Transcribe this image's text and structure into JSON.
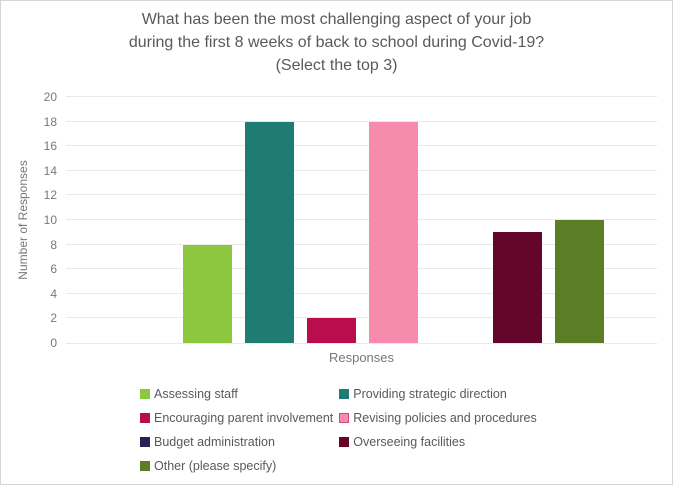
{
  "chart_data": {
    "type": "bar",
    "title": "What has been the most challenging aspect of your job during the first 8 weeks of back to school during Covid-19? (Select the top 3)",
    "title_lines": [
      "What has been the most challenging aspect of your job",
      "during the first 8 weeks of back to school during Covid-19?",
      "(Select the top 3)"
    ],
    "xlabel": "Responses",
    "ylabel": "Number of Responses",
    "ylim": [
      0,
      20
    ],
    "yticks": [
      0,
      2,
      4,
      6,
      8,
      10,
      12,
      14,
      16,
      18,
      20
    ],
    "grid": true,
    "legend_position": "bottom",
    "categories": [
      "Assessing staff",
      "Providing strategic direction",
      "Encouraging parent involvement",
      "Revising policies and procedures",
      "Budget administration",
      "Overseeing facilities",
      "Other (please specify)"
    ],
    "values": [
      8,
      18,
      2,
      18,
      0,
      9,
      10
    ],
    "colors": [
      "#8dc63f",
      "#1e7c73",
      "#b90d4e",
      "#f78bae",
      "#262253",
      "#630629",
      "#5a7d25"
    ],
    "legend_swatch_borders": [
      "#8dc63f",
      "#1e7c73",
      "#b90d4e",
      "#d14877",
      "#262253",
      "#630629",
      "#5a7d25"
    ]
  },
  "styles": {
    "title_color": "#58595b",
    "axis_text_color": "#77787b",
    "legend_text_color": "#58595b",
    "gridline_color": "#e9e9e9",
    "frame_border_color": "#d6d6d6"
  }
}
